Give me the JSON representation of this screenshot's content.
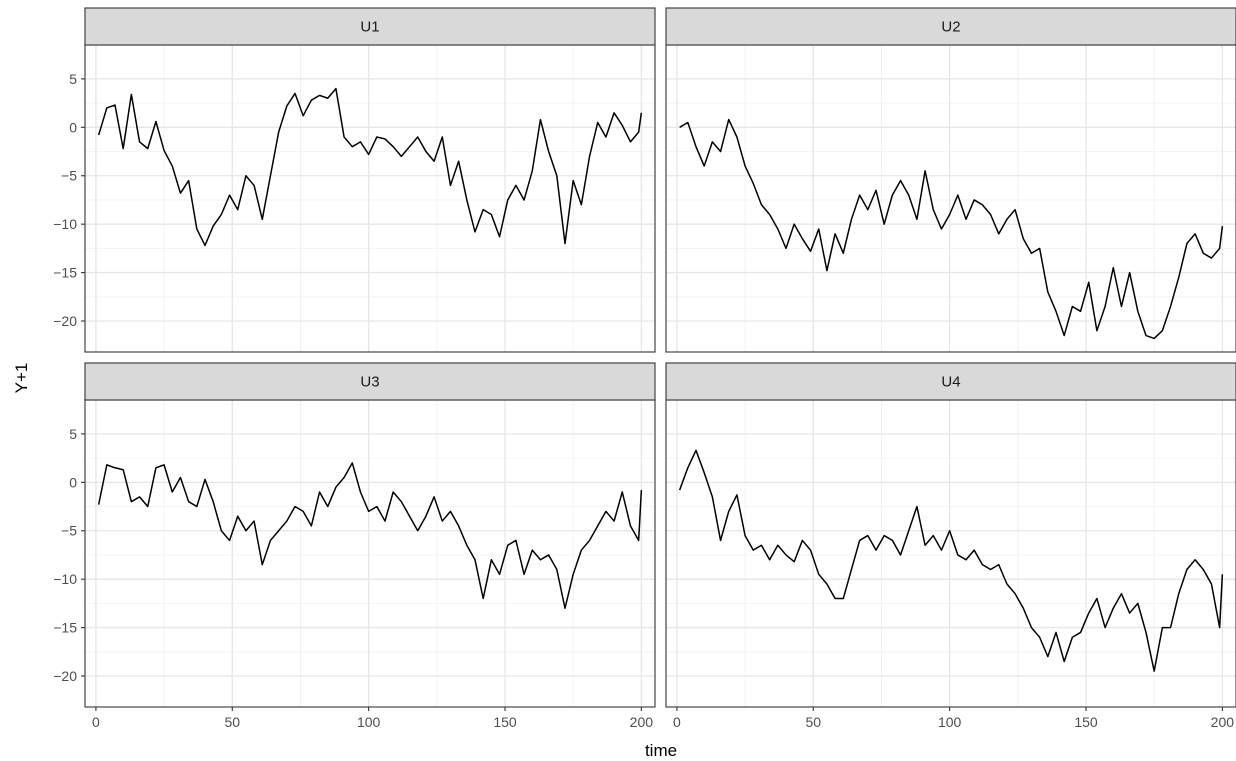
{
  "chart_data": {
    "type": "line",
    "facet_layout": "2x2 grid, shared axes",
    "xlabel": "time",
    "ylabel": "Y+1",
    "xlim": [
      -4,
      205
    ],
    "ylim": [
      -23.2,
      8.5
    ],
    "x_ticks": [
      0,
      50,
      100,
      150,
      200
    ],
    "y_ticks": [
      5,
      0,
      -5,
      -10,
      -15,
      -20
    ],
    "x_tick_labels": [
      "0",
      "50",
      "100",
      "150",
      "200"
    ],
    "y_tick_labels": [
      "5",
      "0",
      "−5",
      "−10",
      "−15",
      "−20"
    ],
    "grid": true,
    "line_color": "#000000",
    "panels": [
      {
        "label": "U1",
        "x": [
          1,
          4,
          7,
          10,
          13,
          16,
          19,
          22,
          25,
          28,
          31,
          34,
          37,
          40,
          43,
          46,
          49,
          52,
          55,
          58,
          61,
          64,
          67,
          70,
          73,
          76,
          79,
          82,
          85,
          88,
          91,
          94,
          97,
          100,
          103,
          106,
          109,
          112,
          115,
          118,
          121,
          124,
          127,
          130,
          133,
          136,
          139,
          142,
          145,
          148,
          151,
          154,
          157,
          160,
          163,
          166,
          169,
          172,
          175,
          178,
          181,
          184,
          187,
          190,
          193,
          196,
          199,
          200
        ],
        "y": [
          -0.8,
          2.0,
          2.3,
          -2.2,
          3.4,
          -1.5,
          -2.2,
          0.6,
          -2.4,
          -4.0,
          -6.8,
          -5.5,
          -10.5,
          -12.2,
          -10.2,
          -9.0,
          -7.0,
          -8.5,
          -5.0,
          -6.0,
          -9.5,
          -5.0,
          -0.5,
          2.2,
          3.5,
          1.2,
          2.8,
          3.3,
          3.0,
          4.0,
          -1.0,
          -2.0,
          -1.5,
          -2.8,
          -1.0,
          -1.2,
          -2.0,
          -3.0,
          -2.0,
          -1.0,
          -2.5,
          -3.5,
          -1.0,
          -6.0,
          -3.5,
          -7.5,
          -10.8,
          -8.5,
          -9.0,
          -11.3,
          -7.5,
          -6.0,
          -7.5,
          -4.5,
          0.8,
          -2.5,
          -5.0,
          -12.0,
          -5.5,
          -8.0,
          -3.0,
          0.5,
          -1.0,
          1.5,
          0.2,
          -1.5,
          -0.5,
          1.5
        ]
      },
      {
        "label": "U2",
        "x": [
          1,
          4,
          7,
          10,
          13,
          16,
          19,
          22,
          25,
          28,
          31,
          34,
          37,
          40,
          43,
          46,
          49,
          52,
          55,
          58,
          61,
          64,
          67,
          70,
          73,
          76,
          79,
          82,
          85,
          88,
          91,
          94,
          97,
          100,
          103,
          106,
          109,
          112,
          115,
          118,
          121,
          124,
          127,
          130,
          133,
          136,
          139,
          142,
          145,
          148,
          151,
          154,
          157,
          160,
          163,
          166,
          169,
          172,
          175,
          178,
          181,
          184,
          187,
          190,
          193,
          196,
          199,
          200
        ],
        "y": [
          0.0,
          0.5,
          -2.0,
          -4.0,
          -1.5,
          -2.5,
          0.8,
          -1.0,
          -4.0,
          -5.8,
          -8.0,
          -9.0,
          -10.5,
          -12.5,
          -10.0,
          -11.5,
          -12.8,
          -10.5,
          -14.8,
          -11.0,
          -13.0,
          -9.5,
          -7.0,
          -8.5,
          -6.5,
          -10.0,
          -7.0,
          -5.5,
          -7.0,
          -9.5,
          -4.5,
          -8.5,
          -10.5,
          -9.0,
          -7.0,
          -9.5,
          -7.5,
          -8.0,
          -9.0,
          -11.0,
          -9.5,
          -8.5,
          -11.5,
          -13.0,
          -12.5,
          -17.0,
          -19.0,
          -21.5,
          -18.5,
          -19.0,
          -16.0,
          -21.0,
          -18.5,
          -14.5,
          -18.5,
          -15.0,
          -19.0,
          -21.5,
          -21.8,
          -21.0,
          -18.5,
          -15.5,
          -12.0,
          -11.0,
          -13.0,
          -13.5,
          -12.5,
          -10.2
        ]
      },
      {
        "label": "U3",
        "x": [
          1,
          4,
          7,
          10,
          13,
          16,
          19,
          22,
          25,
          28,
          31,
          34,
          37,
          40,
          43,
          46,
          49,
          52,
          55,
          58,
          61,
          64,
          67,
          70,
          73,
          76,
          79,
          82,
          85,
          88,
          91,
          94,
          97,
          100,
          103,
          106,
          109,
          112,
          115,
          118,
          121,
          124,
          127,
          130,
          133,
          136,
          139,
          142,
          145,
          148,
          151,
          154,
          157,
          160,
          163,
          166,
          169,
          172,
          175,
          178,
          181,
          184,
          187,
          190,
          193,
          196,
          199,
          200
        ],
        "y": [
          -2.3,
          1.8,
          1.5,
          1.3,
          -2.0,
          -1.5,
          -2.5,
          1.5,
          1.8,
          -1.0,
          0.5,
          -2.0,
          -2.5,
          0.3,
          -2.0,
          -5.0,
          -6.0,
          -3.5,
          -5.0,
          -4.0,
          -8.5,
          -6.0,
          -5.0,
          -4.0,
          -2.5,
          -3.0,
          -4.5,
          -1.0,
          -2.5,
          -0.5,
          0.5,
          2.0,
          -1.0,
          -3.0,
          -2.5,
          -4.0,
          -1.0,
          -2.0,
          -3.5,
          -5.0,
          -3.5,
          -1.5,
          -4.0,
          -3.0,
          -4.5,
          -6.5,
          -8.0,
          -12.0,
          -8.0,
          -9.5,
          -6.5,
          -6.0,
          -9.5,
          -7.0,
          -8.0,
          -7.5,
          -9.0,
          -13.0,
          -9.5,
          -7.0,
          -6.0,
          -4.5,
          -3.0,
          -4.0,
          -1.0,
          -4.5,
          -6.0,
          -0.8
        ]
      },
      {
        "label": "U4",
        "x": [
          1,
          4,
          7,
          10,
          13,
          16,
          19,
          22,
          25,
          28,
          31,
          34,
          37,
          40,
          43,
          46,
          49,
          52,
          55,
          58,
          61,
          64,
          67,
          70,
          73,
          76,
          79,
          82,
          85,
          88,
          91,
          94,
          97,
          100,
          103,
          106,
          109,
          112,
          115,
          118,
          121,
          124,
          127,
          130,
          133,
          136,
          139,
          142,
          145,
          148,
          151,
          154,
          157,
          160,
          163,
          166,
          169,
          172,
          175,
          178,
          181,
          184,
          187,
          190,
          193,
          196,
          199,
          200
        ],
        "y": [
          -0.8,
          1.5,
          3.3,
          1.0,
          -1.5,
          -6.0,
          -3.0,
          -1.3,
          -5.5,
          -7.0,
          -6.5,
          -8.0,
          -6.5,
          -7.5,
          -8.2,
          -6.0,
          -7.0,
          -9.5,
          -10.5,
          -12.0,
          -12.0,
          -9.0,
          -6.0,
          -5.5,
          -7.0,
          -5.5,
          -6.0,
          -7.5,
          -5.0,
          -2.5,
          -6.5,
          -5.5,
          -7.0,
          -5.0,
          -7.5,
          -8.0,
          -7.0,
          -8.5,
          -9.0,
          -8.5,
          -10.5,
          -11.5,
          -13.0,
          -15.0,
          -16.0,
          -18.0,
          -15.5,
          -18.5,
          -16.0,
          -15.5,
          -13.5,
          -12.0,
          -15.0,
          -13.0,
          -11.5,
          -13.5,
          -12.5,
          -15.5,
          -19.5,
          -15.0,
          -15.0,
          -11.5,
          -9.0,
          -8.0,
          -9.0,
          -10.5,
          -15.0,
          -9.5
        ]
      }
    ]
  }
}
